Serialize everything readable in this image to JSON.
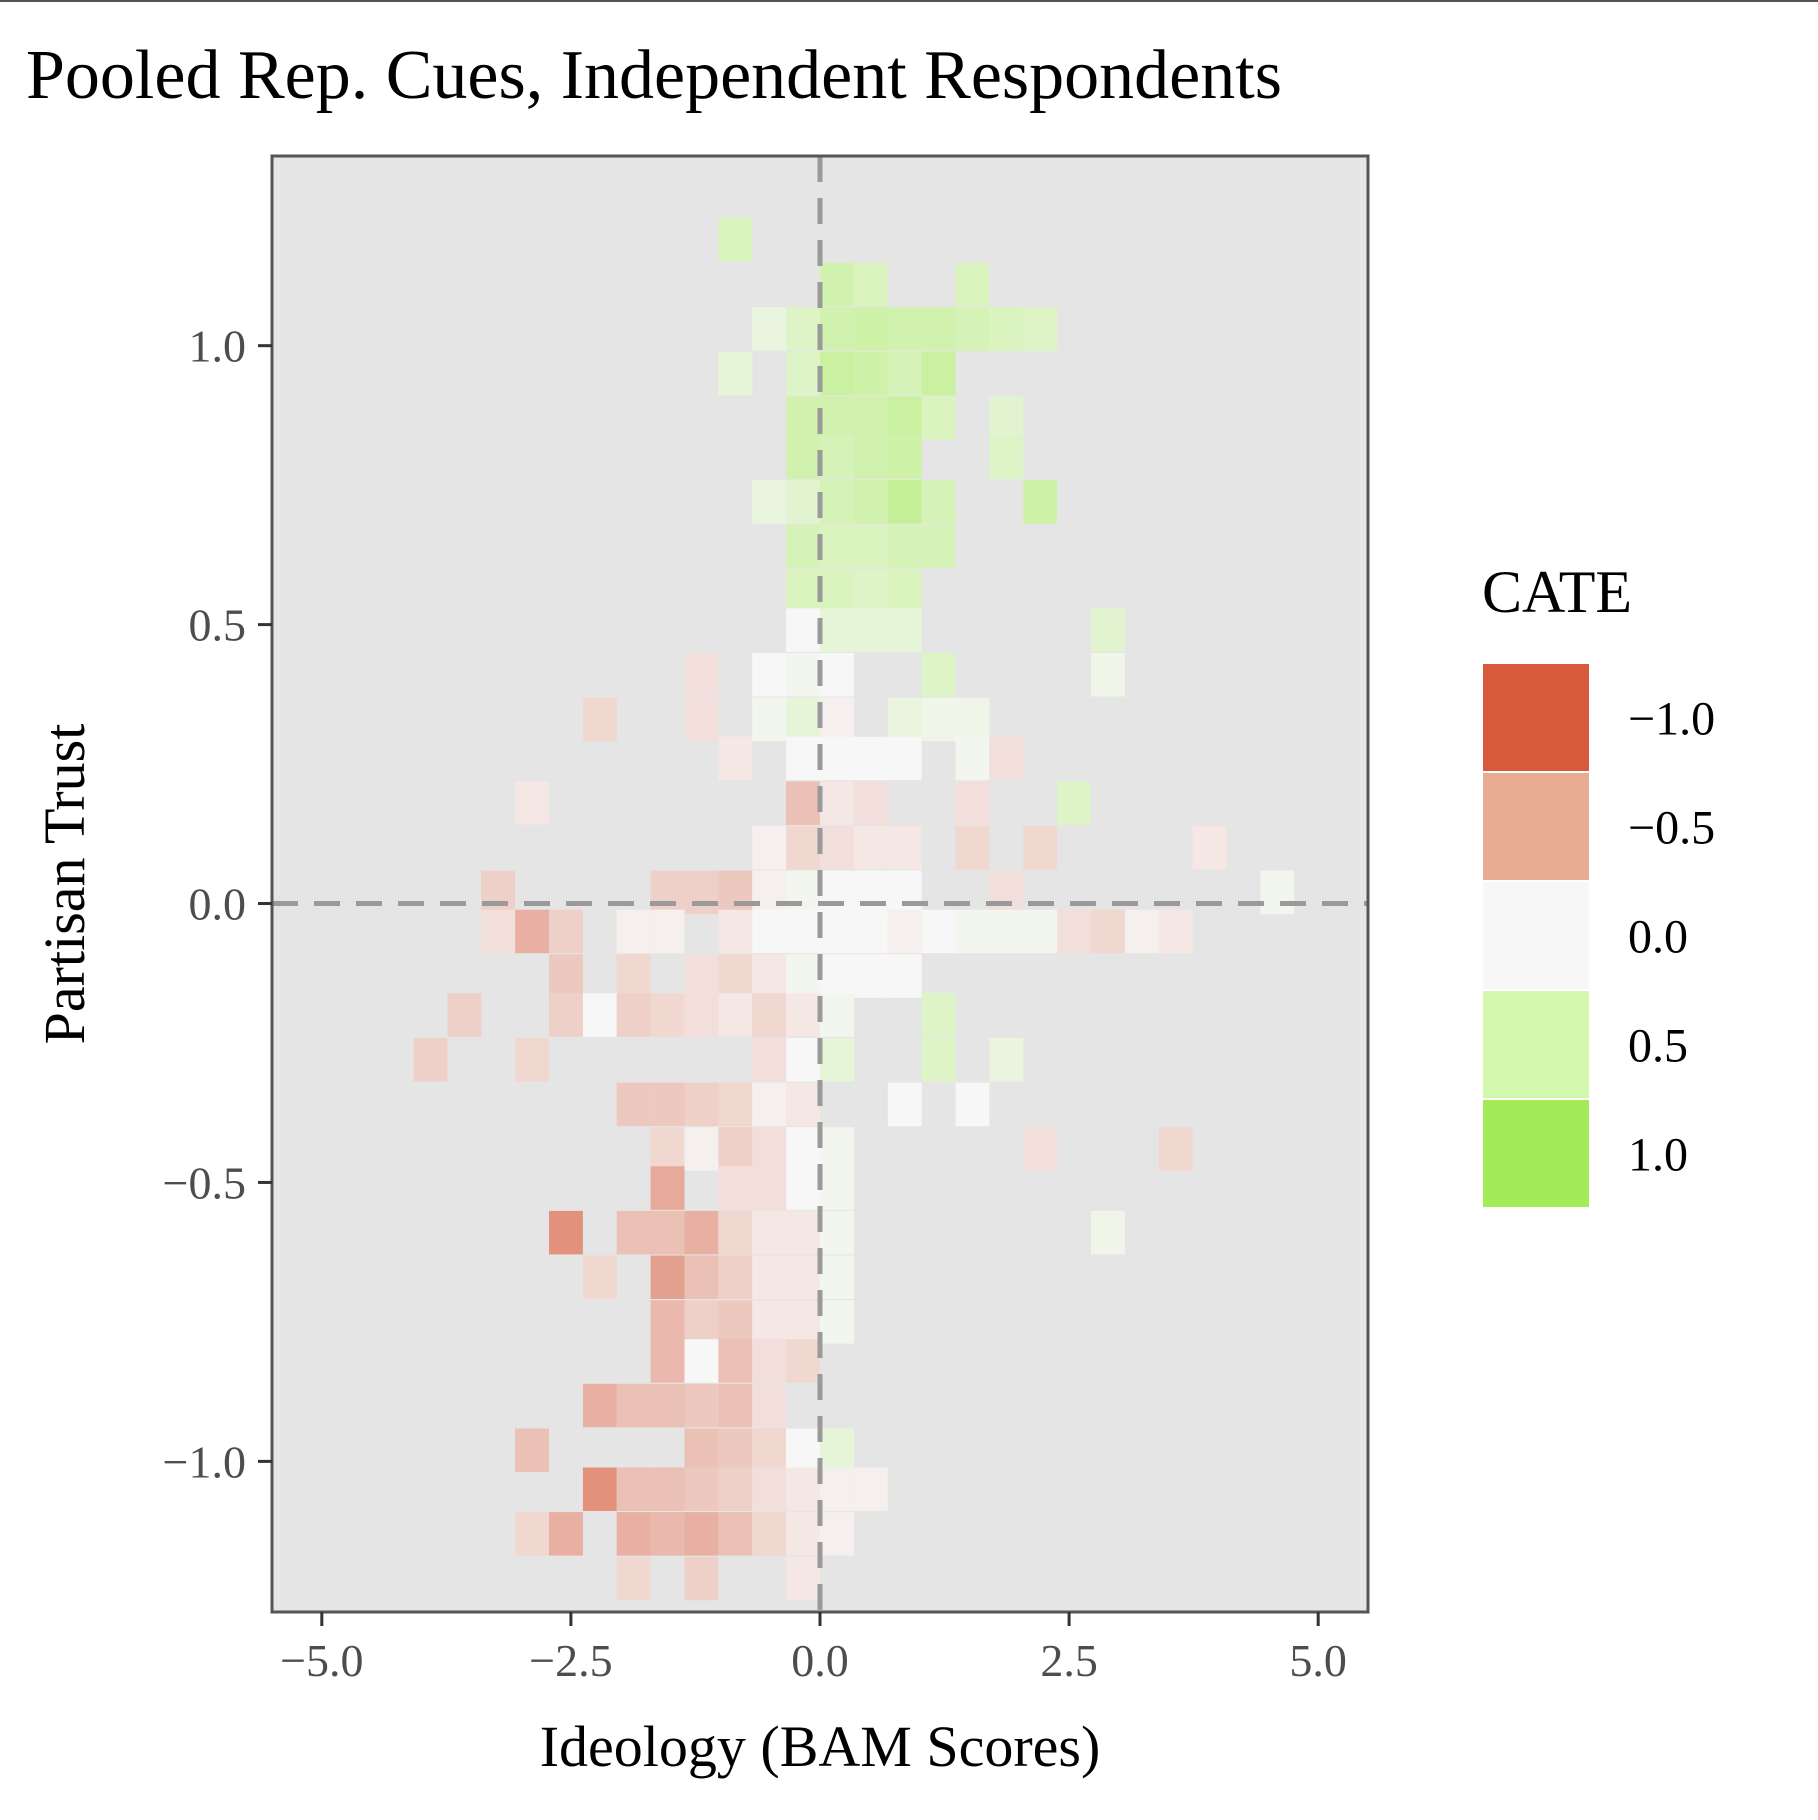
{
  "chart_data": {
    "type": "heatmap",
    "title": "Pooled Rep. Cues, Independent Respondents",
    "xlabel": "Ideology (BAM Scores)",
    "ylabel": "Partisan Trust",
    "xlim": [
      -5.5,
      5.5
    ],
    "ylim": [
      -1.27,
      1.34
    ],
    "x_ticks": [
      -5.0,
      -2.5,
      0.0,
      2.5,
      5.0
    ],
    "x_tick_labels": [
      "−5.0",
      "−2.5",
      "0.0",
      "2.5",
      "5.0"
    ],
    "y_ticks": [
      1.0,
      0.5,
      0.0,
      -0.5,
      -1.0
    ],
    "y_tick_labels": [
      "1.0",
      "0.5",
      "0.0",
      "−0.5",
      "−1.0"
    ],
    "reference_lines": {
      "x": 0,
      "y": 0,
      "style": "dashed"
    },
    "bin_width_x": 0.34,
    "bin_height_y": 0.078,
    "background_color": "#e5e5e5",
    "grid": false,
    "legend": {
      "title": "CATE",
      "position": "right",
      "entries": [
        {
          "label": "−1.0",
          "value": -1.0,
          "color": "#d65a3b"
        },
        {
          "label": "−0.5",
          "value": -0.5,
          "color": "#e8ab94"
        },
        {
          "label": "0.0",
          "value": 0.0,
          "color": "#f7f7f7"
        },
        {
          "label": "0.5",
          "value": 0.5,
          "color": "#d2f7ad"
        },
        {
          "label": "1.0",
          "value": 1.0,
          "color": "#a3ec58"
        }
      ]
    },
    "cells": [
      {
        "x": -0.85,
        "y": 1.19,
        "value": 0.35
      },
      {
        "x": 0.17,
        "y": 1.11,
        "value": 0.45
      },
      {
        "x": 0.51,
        "y": 1.11,
        "value": 0.35
      },
      {
        "x": 1.53,
        "y": 1.11,
        "value": 0.35
      },
      {
        "x": -0.51,
        "y": 1.03,
        "value": 0.15
      },
      {
        "x": -0.17,
        "y": 1.03,
        "value": 0.3
      },
      {
        "x": 0.17,
        "y": 1.03,
        "value": 0.45
      },
      {
        "x": 0.51,
        "y": 1.03,
        "value": 0.5
      },
      {
        "x": 0.85,
        "y": 1.03,
        "value": 0.45
      },
      {
        "x": 1.19,
        "y": 1.03,
        "value": 0.45
      },
      {
        "x": 1.53,
        "y": 1.03,
        "value": 0.4
      },
      {
        "x": 1.87,
        "y": 1.03,
        "value": 0.35
      },
      {
        "x": 2.21,
        "y": 1.03,
        "value": 0.3
      },
      {
        "x": -0.85,
        "y": 0.95,
        "value": 0.2
      },
      {
        "x": -0.17,
        "y": 0.95,
        "value": 0.3
      },
      {
        "x": 0.17,
        "y": 0.95,
        "value": 0.55
      },
      {
        "x": 0.51,
        "y": 0.95,
        "value": 0.5
      },
      {
        "x": 0.85,
        "y": 0.95,
        "value": 0.4
      },
      {
        "x": 1.19,
        "y": 0.95,
        "value": 0.55
      },
      {
        "x": -0.17,
        "y": 0.87,
        "value": 0.45
      },
      {
        "x": 0.17,
        "y": 0.87,
        "value": 0.45
      },
      {
        "x": 0.51,
        "y": 0.87,
        "value": 0.45
      },
      {
        "x": 0.85,
        "y": 0.87,
        "value": 0.55
      },
      {
        "x": 1.19,
        "y": 0.87,
        "value": 0.35
      },
      {
        "x": 1.87,
        "y": 0.87,
        "value": 0.25
      },
      {
        "x": -0.17,
        "y": 0.8,
        "value": 0.45
      },
      {
        "x": 0.17,
        "y": 0.8,
        "value": 0.4
      },
      {
        "x": 0.51,
        "y": 0.8,
        "value": 0.45
      },
      {
        "x": 0.85,
        "y": 0.8,
        "value": 0.5
      },
      {
        "x": 1.87,
        "y": 0.8,
        "value": 0.3
      },
      {
        "x": 0.17,
        "y": 0.72,
        "value": 0.4
      },
      {
        "x": 0.51,
        "y": 0.72,
        "value": 0.4
      },
      {
        "x": 0.85,
        "y": 0.72,
        "value": 0.45
      },
      {
        "x": -0.51,
        "y": 0.72,
        "value": 0.15
      },
      {
        "x": -0.17,
        "y": 0.72,
        "value": 0.25
      },
      {
        "x": 0.17,
        "y": 0.72,
        "value": 0.4
      },
      {
        "x": 0.51,
        "y": 0.72,
        "value": 0.45
      },
      {
        "x": 0.85,
        "y": 0.72,
        "value": 0.6
      },
      {
        "x": 1.19,
        "y": 0.72,
        "value": 0.4
      },
      {
        "x": 2.21,
        "y": 0.72,
        "value": 0.5
      },
      {
        "x": -0.17,
        "y": 0.64,
        "value": 0.4
      },
      {
        "x": 0.17,
        "y": 0.64,
        "value": 0.35
      },
      {
        "x": 0.51,
        "y": 0.64,
        "value": 0.35
      },
      {
        "x": 0.85,
        "y": 0.64,
        "value": 0.4
      },
      {
        "x": 1.19,
        "y": 0.64,
        "value": 0.4
      },
      {
        "x": -0.17,
        "y": 0.56,
        "value": 0.35
      },
      {
        "x": 0.17,
        "y": 0.56,
        "value": 0.35
      },
      {
        "x": 0.51,
        "y": 0.56,
        "value": 0.3
      },
      {
        "x": 0.85,
        "y": 0.56,
        "value": 0.35
      },
      {
        "x": -0.17,
        "y": 0.49,
        "value": 0.0
      },
      {
        "x": 0.17,
        "y": 0.49,
        "value": 0.2
      },
      {
        "x": 0.51,
        "y": 0.49,
        "value": 0.2
      },
      {
        "x": 0.85,
        "y": 0.49,
        "value": 0.2
      },
      {
        "x": 2.89,
        "y": 0.49,
        "value": 0.25
      },
      {
        "x": -1.19,
        "y": 0.41,
        "value": -0.15
      },
      {
        "x": -0.51,
        "y": 0.41,
        "value": 0.0
      },
      {
        "x": -0.17,
        "y": 0.41,
        "value": 0.05
      },
      {
        "x": 0.17,
        "y": 0.41,
        "value": 0.0
      },
      {
        "x": 1.19,
        "y": 0.41,
        "value": 0.3
      },
      {
        "x": 2.89,
        "y": 0.41,
        "value": 0.1
      },
      {
        "x": -2.21,
        "y": 0.33,
        "value": -0.2
      },
      {
        "x": -1.19,
        "y": 0.33,
        "value": -0.15
      },
      {
        "x": -0.51,
        "y": 0.33,
        "value": 0.05
      },
      {
        "x": -0.17,
        "y": 0.33,
        "value": 0.2
      },
      {
        "x": 0.17,
        "y": 0.33,
        "value": -0.05
      },
      {
        "x": 0.85,
        "y": 0.33,
        "value": 0.15
      },
      {
        "x": 1.19,
        "y": 0.33,
        "value": 0.1
      },
      {
        "x": 1.53,
        "y": 0.33,
        "value": 0.1
      },
      {
        "x": -0.85,
        "y": 0.26,
        "value": -0.1
      },
      {
        "x": -0.17,
        "y": 0.26,
        "value": 0.0
      },
      {
        "x": 0.17,
        "y": 0.26,
        "value": 0.0
      },
      {
        "x": 0.51,
        "y": 0.26,
        "value": 0.0
      },
      {
        "x": 0.85,
        "y": 0.26,
        "value": 0.0
      },
      {
        "x": 1.53,
        "y": 0.26,
        "value": 0.05
      },
      {
        "x": 1.87,
        "y": 0.26,
        "value": -0.15
      },
      {
        "x": -2.89,
        "y": 0.18,
        "value": -0.1
      },
      {
        "x": -0.17,
        "y": 0.18,
        "value": -0.35
      },
      {
        "x": 0.17,
        "y": 0.18,
        "value": -0.1
      },
      {
        "x": 0.51,
        "y": 0.18,
        "value": -0.15
      },
      {
        "x": 1.53,
        "y": 0.18,
        "value": -0.15
      },
      {
        "x": 2.55,
        "y": 0.18,
        "value": 0.3
      },
      {
        "x": -0.51,
        "y": 0.1,
        "value": -0.05
      },
      {
        "x": -0.17,
        "y": 0.1,
        "value": -0.2
      },
      {
        "x": 0.17,
        "y": 0.1,
        "value": -0.15
      },
      {
        "x": 0.51,
        "y": 0.1,
        "value": -0.1
      },
      {
        "x": 0.85,
        "y": 0.1,
        "value": -0.1
      },
      {
        "x": 1.53,
        "y": 0.1,
        "value": -0.2
      },
      {
        "x": 2.21,
        "y": 0.1,
        "value": -0.2
      },
      {
        "x": 3.91,
        "y": 0.1,
        "value": -0.1
      },
      {
        "x": -3.23,
        "y": 0.02,
        "value": -0.25
      },
      {
        "x": -1.53,
        "y": 0.02,
        "value": -0.25
      },
      {
        "x": -1.19,
        "y": 0.02,
        "value": -0.25
      },
      {
        "x": -0.85,
        "y": 0.02,
        "value": -0.3
      },
      {
        "x": -0.51,
        "y": 0.02,
        "value": -0.05
      },
      {
        "x": -0.17,
        "y": 0.02,
        "value": 0.05
      },
      {
        "x": 0.17,
        "y": 0.02,
        "value": 0.0
      },
      {
        "x": 0.51,
        "y": 0.02,
        "value": 0.0
      },
      {
        "x": 0.85,
        "y": 0.02,
        "value": 0.0
      },
      {
        "x": 1.87,
        "y": 0.02,
        "value": -0.15
      },
      {
        "x": 4.59,
        "y": 0.02,
        "value": 0.05
      },
      {
        "x": -3.23,
        "y": -0.05,
        "value": -0.15
      },
      {
        "x": -2.89,
        "y": -0.05,
        "value": -0.45
      },
      {
        "x": -2.55,
        "y": -0.05,
        "value": -0.25
      },
      {
        "x": -1.87,
        "y": -0.05,
        "value": -0.05
      },
      {
        "x": -1.53,
        "y": -0.05,
        "value": -0.05
      },
      {
        "x": -0.85,
        "y": -0.05,
        "value": -0.1
      },
      {
        "x": -0.51,
        "y": -0.05,
        "value": 0.0
      },
      {
        "x": -0.17,
        "y": -0.05,
        "value": 0.0
      },
      {
        "x": 0.17,
        "y": -0.05,
        "value": 0.0
      },
      {
        "x": 0.51,
        "y": -0.05,
        "value": 0.0
      },
      {
        "x": 0.85,
        "y": -0.05,
        "value": -0.05
      },
      {
        "x": 1.19,
        "y": -0.05,
        "value": 0.0
      },
      {
        "x": 1.53,
        "y": -0.05,
        "value": 0.05
      },
      {
        "x": 1.87,
        "y": -0.05,
        "value": 0.05
      },
      {
        "x": 2.21,
        "y": -0.05,
        "value": 0.05
      },
      {
        "x": 2.55,
        "y": -0.05,
        "value": -0.15
      },
      {
        "x": 2.89,
        "y": -0.05,
        "value": -0.2
      },
      {
        "x": 3.23,
        "y": -0.05,
        "value": -0.05
      },
      {
        "x": 3.57,
        "y": -0.05,
        "value": -0.1
      },
      {
        "x": -2.55,
        "y": -0.13,
        "value": -0.3
      },
      {
        "x": -1.87,
        "y": -0.13,
        "value": -0.2
      },
      {
        "x": -1.19,
        "y": -0.13,
        "value": -0.15
      },
      {
        "x": -0.85,
        "y": -0.13,
        "value": -0.2
      },
      {
        "x": -0.51,
        "y": -0.13,
        "value": -0.1
      },
      {
        "x": -0.17,
        "y": -0.13,
        "value": 0.05
      },
      {
        "x": 0.17,
        "y": -0.13,
        "value": 0.0
      },
      {
        "x": 0.51,
        "y": -0.13,
        "value": 0.0
      },
      {
        "x": 0.85,
        "y": -0.13,
        "value": 0.0
      },
      {
        "x": -3.57,
        "y": -0.2,
        "value": -0.25
      },
      {
        "x": -2.55,
        "y": -0.2,
        "value": -0.25
      },
      {
        "x": -2.21,
        "y": -0.2,
        "value": 0.0
      },
      {
        "x": -1.87,
        "y": -0.2,
        "value": -0.25
      },
      {
        "x": -1.53,
        "y": -0.2,
        "value": -0.2
      },
      {
        "x": -1.19,
        "y": -0.2,
        "value": -0.15
      },
      {
        "x": -0.85,
        "y": -0.2,
        "value": -0.1
      },
      {
        "x": -0.51,
        "y": -0.2,
        "value": -0.2
      },
      {
        "x": -0.17,
        "y": -0.2,
        "value": -0.1
      },
      {
        "x": 0.17,
        "y": -0.2,
        "value": 0.05
      },
      {
        "x": 1.19,
        "y": -0.2,
        "value": 0.3
      },
      {
        "x": -3.91,
        "y": -0.28,
        "value": -0.25
      },
      {
        "x": -2.89,
        "y": -0.28,
        "value": -0.2
      },
      {
        "x": -0.51,
        "y": -0.28,
        "value": -0.15
      },
      {
        "x": -0.17,
        "y": -0.28,
        "value": 0.0
      },
      {
        "x": 0.17,
        "y": -0.28,
        "value": 0.2
      },
      {
        "x": 1.19,
        "y": -0.28,
        "value": 0.3
      },
      {
        "x": 1.87,
        "y": -0.28,
        "value": 0.15
      },
      {
        "x": -1.87,
        "y": -0.36,
        "value": -0.3
      },
      {
        "x": -1.53,
        "y": -0.36,
        "value": -0.3
      },
      {
        "x": -1.19,
        "y": -0.36,
        "value": -0.25
      },
      {
        "x": -0.85,
        "y": -0.36,
        "value": -0.2
      },
      {
        "x": -0.51,
        "y": -0.36,
        "value": -0.05
      },
      {
        "x": -0.17,
        "y": -0.36,
        "value": -0.1
      },
      {
        "x": 0.85,
        "y": -0.36,
        "value": 0.0
      },
      {
        "x": 1.53,
        "y": -0.36,
        "value": 0.0
      },
      {
        "x": -1.53,
        "y": -0.44,
        "value": -0.2
      },
      {
        "x": -1.19,
        "y": -0.44,
        "value": -0.05
      },
      {
        "x": -0.85,
        "y": -0.44,
        "value": -0.25
      },
      {
        "x": -0.51,
        "y": -0.44,
        "value": -0.15
      },
      {
        "x": -0.17,
        "y": -0.44,
        "value": 0.0
      },
      {
        "x": 0.17,
        "y": -0.44,
        "value": 0.05
      },
      {
        "x": 2.21,
        "y": -0.44,
        "value": -0.15
      },
      {
        "x": 3.57,
        "y": -0.44,
        "value": -0.2
      },
      {
        "x": -1.53,
        "y": -0.51,
        "value": -0.5
      },
      {
        "x": -0.85,
        "y": -0.51,
        "value": -0.15
      },
      {
        "x": -0.51,
        "y": -0.51,
        "value": -0.15
      },
      {
        "x": -0.17,
        "y": -0.51,
        "value": 0.0
      },
      {
        "x": 0.17,
        "y": -0.51,
        "value": 0.05
      },
      {
        "x": -1.53,
        "y": -0.59,
        "value": -0.45
      },
      {
        "x": -0.85,
        "y": -0.59,
        "value": -0.15
      },
      {
        "x": -0.51,
        "y": -0.59,
        "value": -0.1
      },
      {
        "x": -0.17,
        "y": -0.59,
        "value": 0.0
      },
      {
        "x": 0.17,
        "y": -0.59,
        "value": 0.05
      },
      {
        "x": -2.55,
        "y": -0.59,
        "value": -0.65
      },
      {
        "x": -1.87,
        "y": -0.59,
        "value": -0.35
      },
      {
        "x": -1.53,
        "y": -0.59,
        "value": -0.35
      },
      {
        "x": -1.19,
        "y": -0.59,
        "value": -0.45
      },
      {
        "x": -0.85,
        "y": -0.59,
        "value": -0.2
      },
      {
        "x": -0.51,
        "y": -0.59,
        "value": -0.1
      },
      {
        "x": -0.17,
        "y": -0.59,
        "value": -0.1
      },
      {
        "x": 2.89,
        "y": -0.59,
        "value": 0.1
      },
      {
        "x": -2.21,
        "y": -0.67,
        "value": -0.2
      },
      {
        "x": -1.53,
        "y": -0.67,
        "value": -0.55
      },
      {
        "x": -1.19,
        "y": -0.67,
        "value": -0.35
      },
      {
        "x": -0.85,
        "y": -0.67,
        "value": -0.25
      },
      {
        "x": -0.51,
        "y": -0.67,
        "value": -0.1
      },
      {
        "x": -0.17,
        "y": -0.67,
        "value": -0.1
      },
      {
        "x": 0.17,
        "y": -0.67,
        "value": 0.05
      },
      {
        "x": -1.53,
        "y": -0.75,
        "value": -0.4
      },
      {
        "x": -1.19,
        "y": -0.75,
        "value": -0.25
      },
      {
        "x": -0.85,
        "y": -0.75,
        "value": -0.3
      },
      {
        "x": -0.51,
        "y": -0.75,
        "value": -0.1
      },
      {
        "x": -0.17,
        "y": -0.75,
        "value": -0.1
      },
      {
        "x": 0.17,
        "y": -0.75,
        "value": 0.05
      },
      {
        "x": -1.53,
        "y": -0.82,
        "value": -0.4
      },
      {
        "x": -1.19,
        "y": -0.82,
        "value": 0.0
      },
      {
        "x": -0.85,
        "y": -0.82,
        "value": -0.35
      },
      {
        "x": -0.51,
        "y": -0.82,
        "value": -0.15
      },
      {
        "x": -0.17,
        "y": -0.82,
        "value": -0.2
      },
      {
        "x": -2.21,
        "y": -0.9,
        "value": -0.45
      },
      {
        "x": -1.87,
        "y": -0.9,
        "value": -0.35
      },
      {
        "x": -1.53,
        "y": -0.9,
        "value": -0.35
      },
      {
        "x": -1.19,
        "y": -0.9,
        "value": -0.3
      },
      {
        "x": -0.85,
        "y": -0.9,
        "value": -0.35
      },
      {
        "x": -0.51,
        "y": -0.9,
        "value": -0.15
      },
      {
        "x": -2.89,
        "y": -0.98,
        "value": -0.35
      },
      {
        "x": -1.19,
        "y": -0.98,
        "value": -0.35
      },
      {
        "x": -0.85,
        "y": -0.98,
        "value": -0.3
      },
      {
        "x": -0.51,
        "y": -0.98,
        "value": -0.2
      },
      {
        "x": -0.17,
        "y": -0.98,
        "value": 0.0
      },
      {
        "x": 0.17,
        "y": -0.98,
        "value": 0.2
      },
      {
        "x": -2.21,
        "y": -1.05,
        "value": -0.65
      },
      {
        "x": -1.87,
        "y": -1.05,
        "value": -0.35
      },
      {
        "x": -1.53,
        "y": -1.05,
        "value": -0.35
      },
      {
        "x": -1.19,
        "y": -1.05,
        "value": -0.3
      },
      {
        "x": -0.85,
        "y": -1.05,
        "value": -0.25
      },
      {
        "x": -0.51,
        "y": -1.05,
        "value": -0.15
      },
      {
        "x": -0.17,
        "y": -1.05,
        "value": -0.1
      },
      {
        "x": 0.17,
        "y": -1.05,
        "value": -0.05
      },
      {
        "x": 0.51,
        "y": -1.05,
        "value": -0.05
      },
      {
        "x": -2.89,
        "y": -1.13,
        "value": -0.2
      },
      {
        "x": -2.55,
        "y": -1.13,
        "value": -0.45
      },
      {
        "x": -1.87,
        "y": -1.13,
        "value": -0.45
      },
      {
        "x": -1.53,
        "y": -1.13,
        "value": -0.4
      },
      {
        "x": -1.19,
        "y": -1.13,
        "value": -0.45
      },
      {
        "x": -0.85,
        "y": -1.13,
        "value": -0.35
      },
      {
        "x": -0.51,
        "y": -1.13,
        "value": -0.2
      },
      {
        "x": -0.17,
        "y": -1.13,
        "value": -0.1
      },
      {
        "x": 0.17,
        "y": -1.13,
        "value": -0.05
      },
      {
        "x": -1.87,
        "y": -1.21,
        "value": -0.2
      },
      {
        "x": -1.19,
        "y": -1.21,
        "value": -0.25
      },
      {
        "x": -0.17,
        "y": -1.21,
        "value": -0.1
      }
    ]
  }
}
